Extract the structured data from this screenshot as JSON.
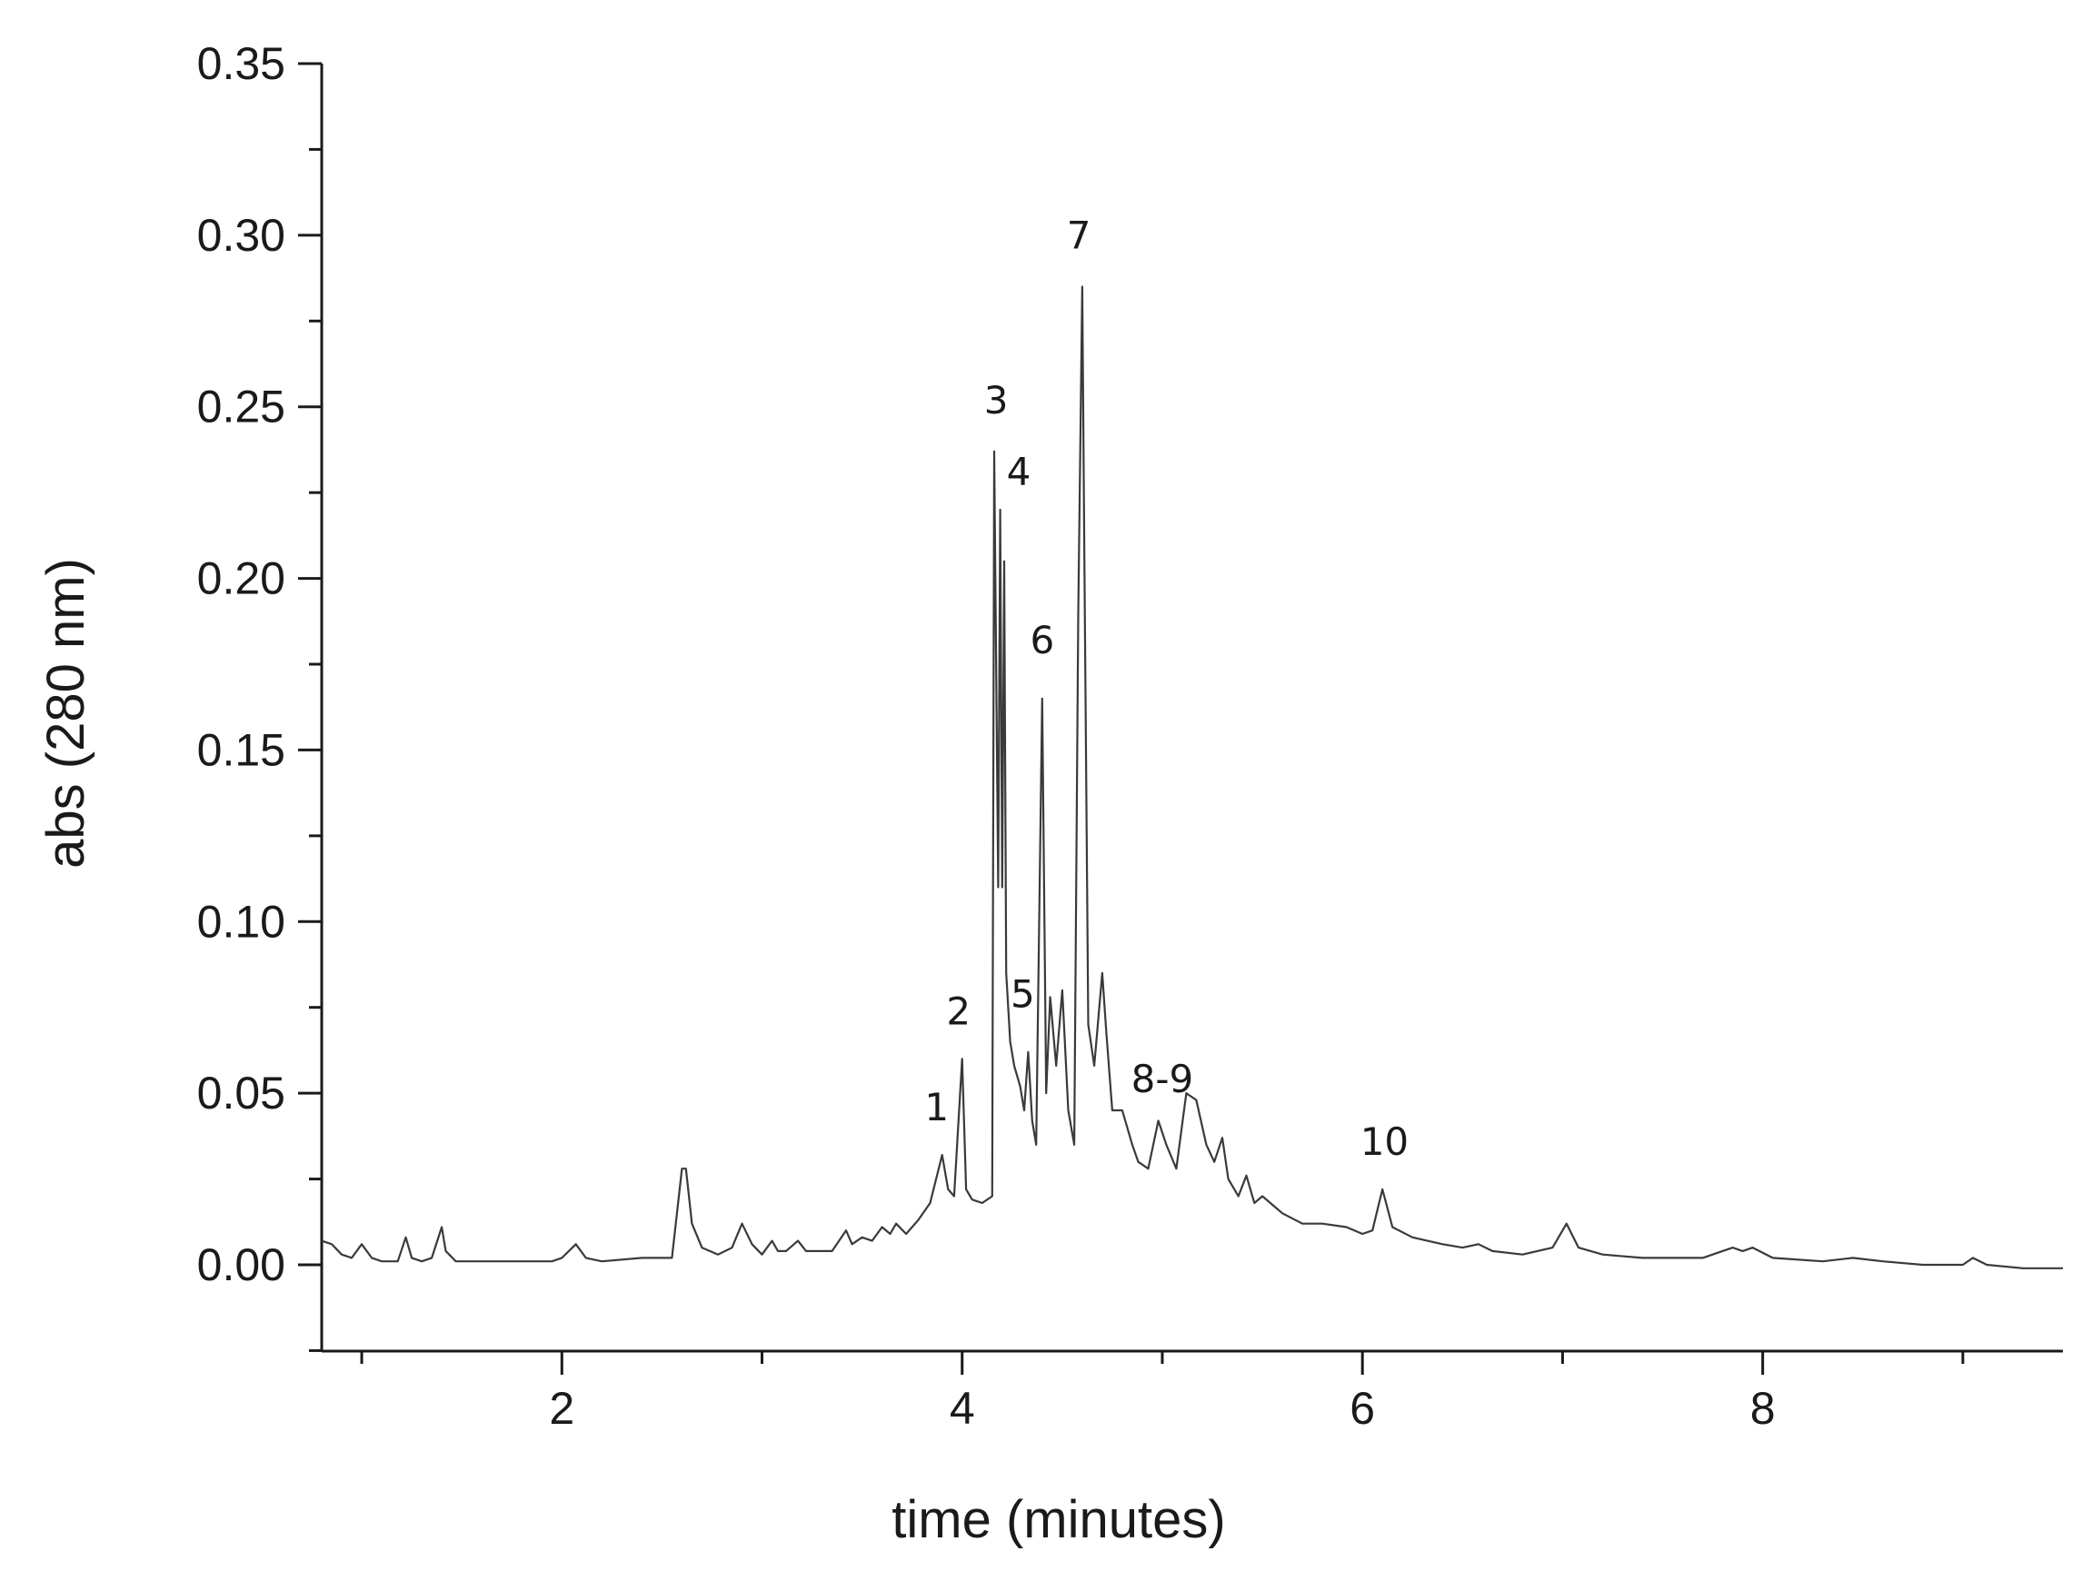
{
  "chart_data": {
    "type": "line",
    "title": "",
    "xlabel": "time (minutes)",
    "ylabel": "abs (280 nm)",
    "xlim": [
      0.8,
      9.5
    ],
    "ylim": [
      -0.025,
      0.35
    ],
    "x_ticks_major": [
      2,
      4,
      6,
      8
    ],
    "x_tick_labels": [
      "2",
      "4",
      "6",
      "8"
    ],
    "x_ticks_minor": [
      1,
      3,
      5,
      7,
      9
    ],
    "y_ticks": [
      0.0,
      0.05,
      0.1,
      0.15,
      0.2,
      0.25,
      0.3,
      0.35
    ],
    "y_tick_labels": [
      "0.00",
      "0.05",
      "0.10",
      "0.15",
      "0.20",
      "0.25",
      "0.30",
      "0.35"
    ],
    "grid": false,
    "line_color": "#3a3a3a",
    "series": [
      {
        "x": [
          0.8,
          0.85,
          0.9,
          0.95,
          1.0,
          1.05,
          1.1,
          1.18,
          1.22,
          1.25,
          1.3,
          1.35,
          1.4,
          1.42,
          1.47,
          1.55,
          1.7,
          1.85,
          1.95,
          2.0,
          2.07,
          2.12,
          2.2,
          2.4,
          2.55,
          2.6,
          2.62,
          2.65,
          2.7,
          2.78,
          2.85,
          2.9,
          2.95,
          3.0,
          3.05,
          3.08,
          3.12,
          3.18,
          3.22,
          3.28,
          3.35,
          3.42,
          3.45,
          3.5,
          3.55,
          3.6,
          3.64,
          3.67,
          3.72,
          3.78,
          3.84,
          3.9,
          3.93,
          3.96,
          4.0,
          4.02,
          4.05,
          4.1,
          4.15,
          4.16,
          4.18,
          4.19,
          4.2,
          4.21,
          4.22,
          4.24,
          4.26,
          4.29,
          4.31,
          4.33,
          4.35,
          4.37,
          4.4,
          4.42,
          4.44,
          4.47,
          4.5,
          4.53,
          4.56,
          4.58,
          4.6,
          4.61,
          4.63,
          4.66,
          4.7,
          4.72,
          4.75,
          4.8,
          4.85,
          4.88,
          4.93,
          4.98,
          5.02,
          5.07,
          5.12,
          5.17,
          5.22,
          5.26,
          5.3,
          5.33,
          5.38,
          5.42,
          5.46,
          5.5,
          5.6,
          5.7,
          5.8,
          5.92,
          6.0,
          6.05,
          6.1,
          6.15,
          6.25,
          6.4,
          6.5,
          6.58,
          6.65,
          6.8,
          6.95,
          7.02,
          7.08,
          7.2,
          7.4,
          7.7,
          7.85,
          7.9,
          7.95,
          8.05,
          8.3,
          8.45,
          8.6,
          8.8,
          9.0,
          9.05,
          9.12,
          9.3,
          9.5
        ],
        "y": [
          0.007,
          0.006,
          0.003,
          0.002,
          0.006,
          0.002,
          0.001,
          0.001,
          0.008,
          0.002,
          0.001,
          0.002,
          0.011,
          0.004,
          0.001,
          0.001,
          0.001,
          0.001,
          0.001,
          0.002,
          0.006,
          0.002,
          0.001,
          0.002,
          0.002,
          0.028,
          0.028,
          0.012,
          0.005,
          0.003,
          0.005,
          0.012,
          0.006,
          0.003,
          0.007,
          0.004,
          0.004,
          0.007,
          0.004,
          0.004,
          0.004,
          0.01,
          0.006,
          0.008,
          0.007,
          0.011,
          0.009,
          0.012,
          0.009,
          0.013,
          0.018,
          0.032,
          0.022,
          0.02,
          0.06,
          0.022,
          0.019,
          0.018,
          0.02,
          0.237,
          0.11,
          0.22,
          0.11,
          0.205,
          0.085,
          0.065,
          0.058,
          0.052,
          0.045,
          0.062,
          0.042,
          0.035,
          0.165,
          0.05,
          0.078,
          0.058,
          0.08,
          0.045,
          0.035,
          0.19,
          0.285,
          0.21,
          0.07,
          0.058,
          0.085,
          0.068,
          0.045,
          0.045,
          0.035,
          0.03,
          0.028,
          0.042,
          0.035,
          0.028,
          0.05,
          0.048,
          0.035,
          0.03,
          0.037,
          0.025,
          0.02,
          0.026,
          0.018,
          0.02,
          0.015,
          0.012,
          0.012,
          0.011,
          0.009,
          0.01,
          0.022,
          0.011,
          0.008,
          0.006,
          0.005,
          0.006,
          0.004,
          0.003,
          0.005,
          0.012,
          0.005,
          0.003,
          0.002,
          0.002,
          0.005,
          0.004,
          0.005,
          0.002,
          0.001,
          0.002,
          0.001,
          0.0,
          0.0,
          0.002,
          0.0,
          -0.001,
          -0.001
        ]
      }
    ],
    "annotations": [
      {
        "text": "1",
        "x": 3.9,
        "y": 0.032
      },
      {
        "text": "2",
        "x": 4.0,
        "y": 0.06
      },
      {
        "text": "3",
        "x": 4.17,
        "y": 0.237
      },
      {
        "text": "4",
        "x": 4.21,
        "y": 0.222
      },
      {
        "text": "5",
        "x": 4.33,
        "y": 0.064
      },
      {
        "text": "6",
        "x": 4.4,
        "y": 0.167
      },
      {
        "text": "7",
        "x": 4.61,
        "y": 0.285
      },
      {
        "text": "8-9",
        "x": 5.0,
        "y": 0.044
      },
      {
        "text": "10",
        "x": 6.11,
        "y": 0.022
      }
    ]
  }
}
